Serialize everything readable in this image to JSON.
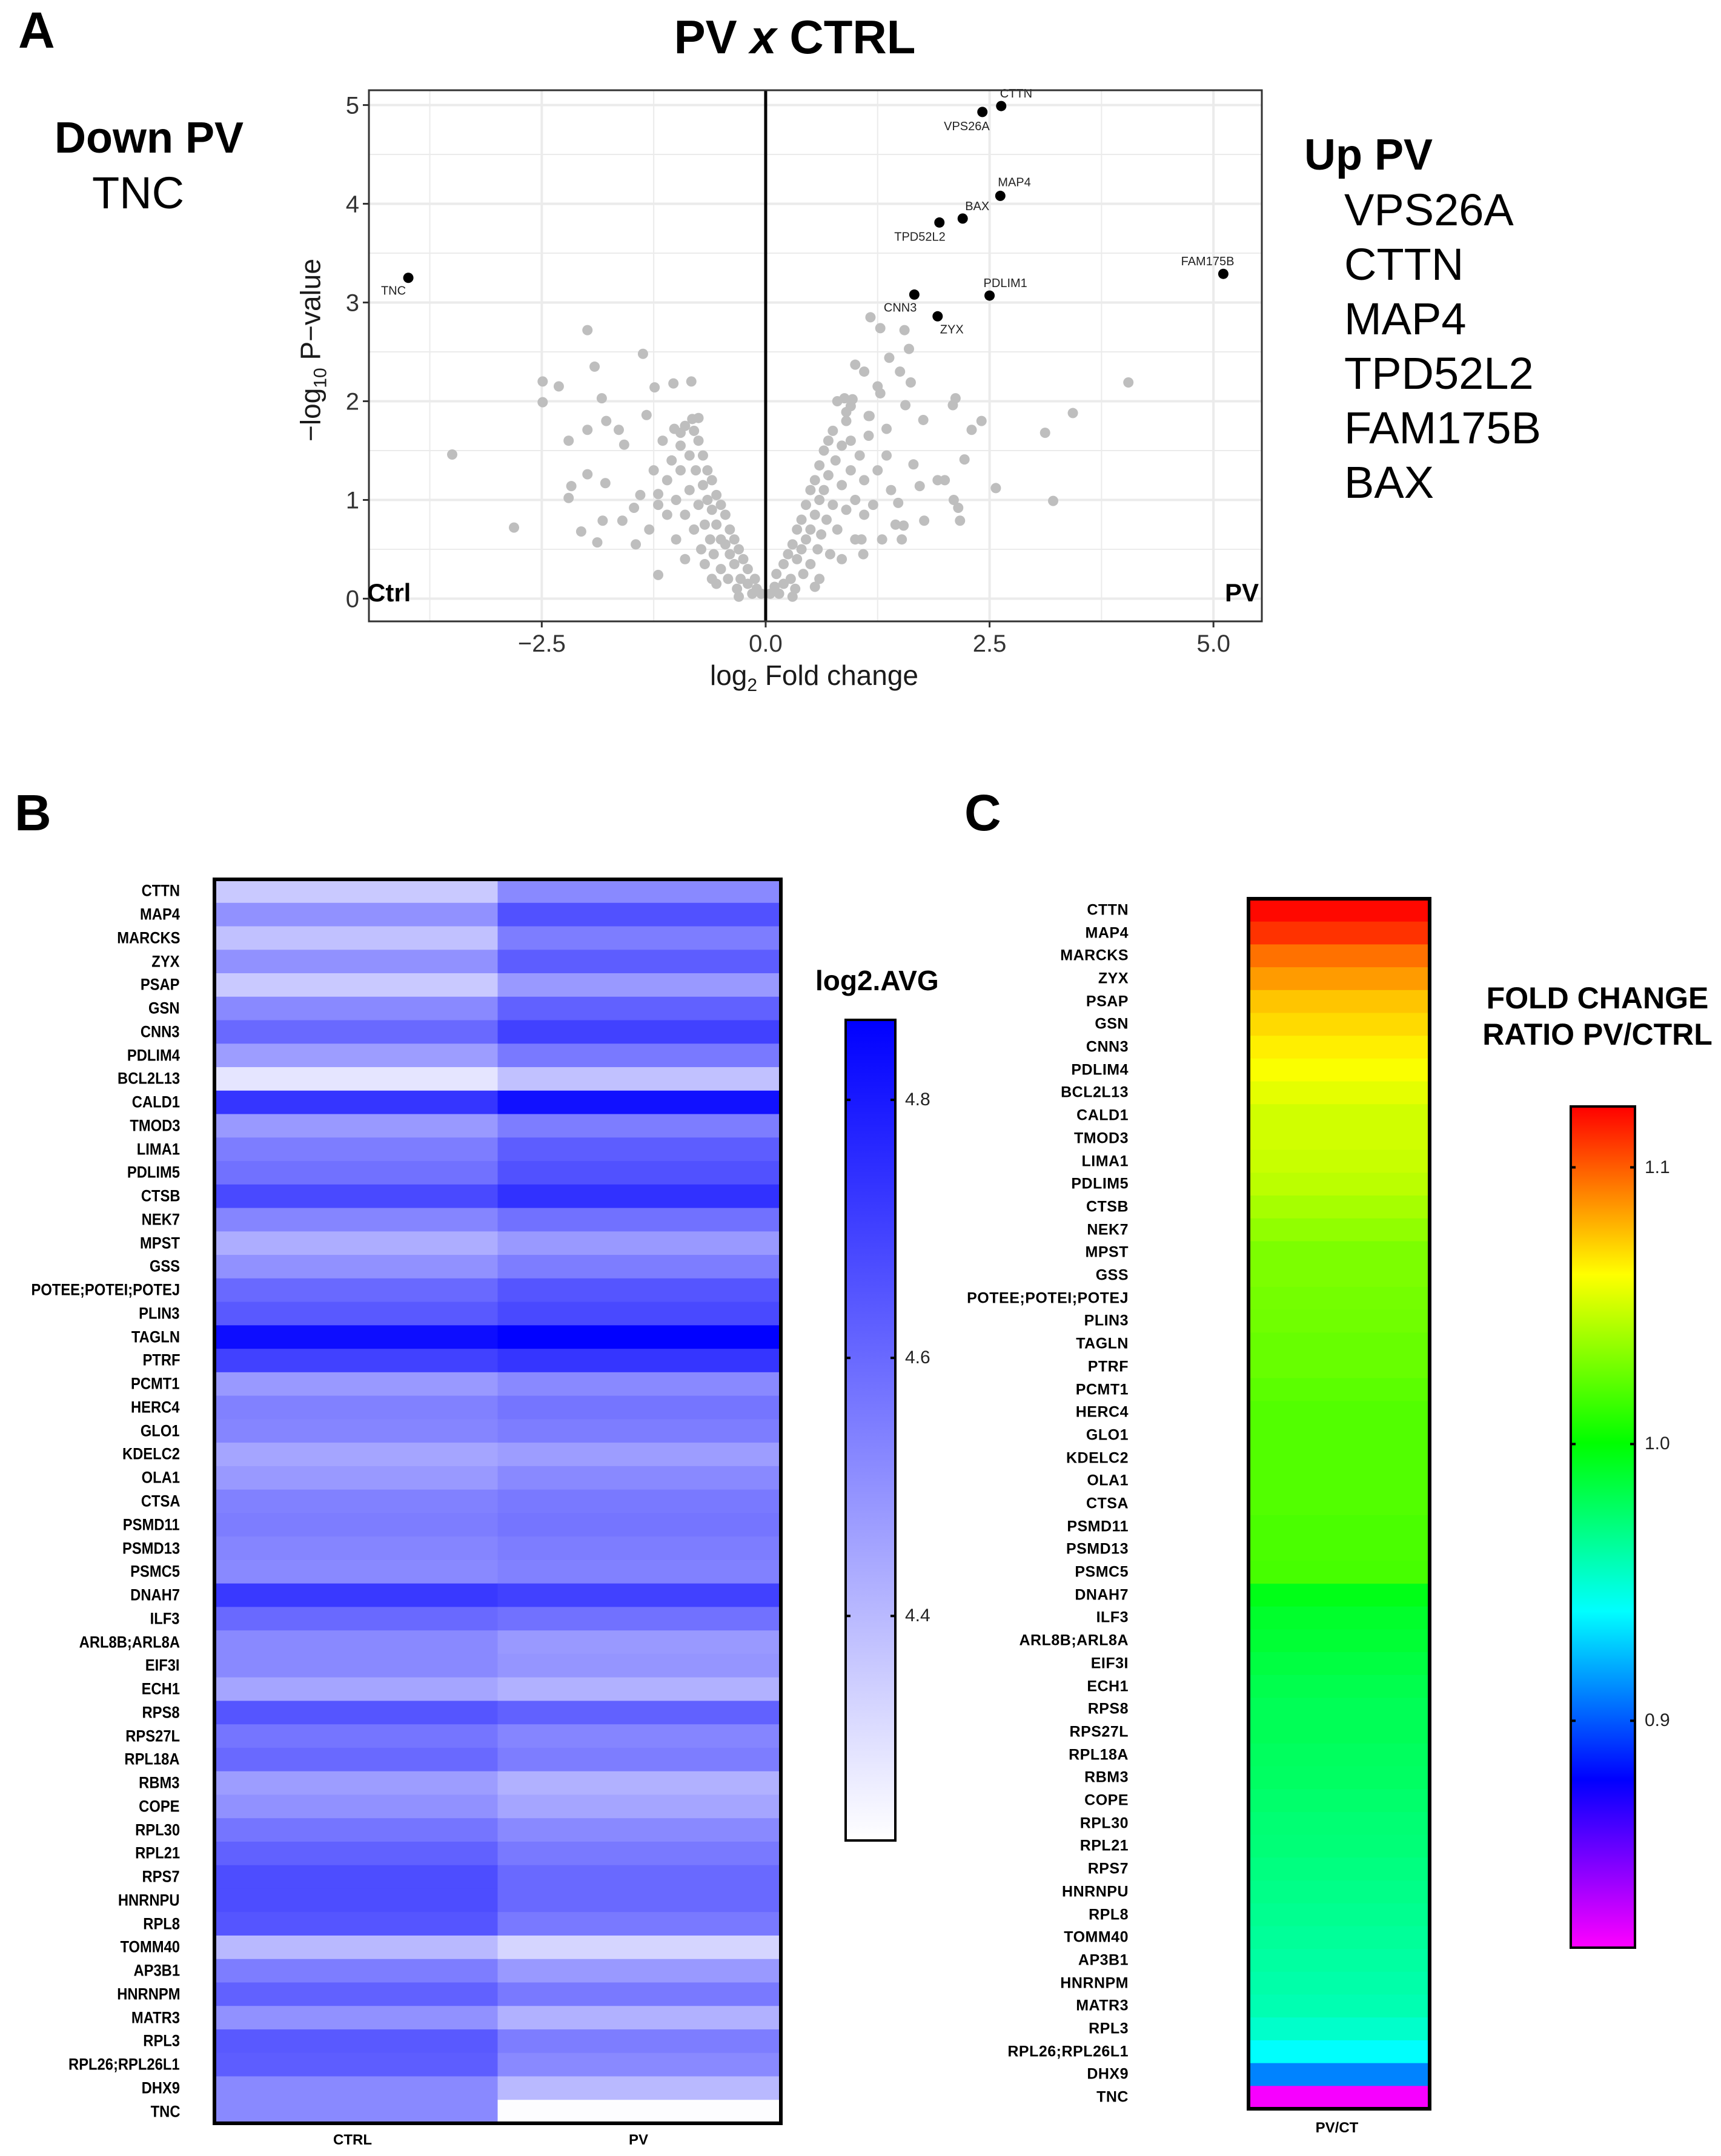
{
  "panels": {
    "a": "A",
    "b": "B",
    "c": "C"
  },
  "volcano": {
    "title_left": "PV",
    "title_x": "x",
    "title_right": "CTRL",
    "down_heading": "Down PV",
    "down_genes": [
      "TNC"
    ],
    "up_heading": "Up PV",
    "up_genes": [
      "VPS26A",
      "CTTN",
      "MAP4",
      "TPD52L2",
      "FAM175B",
      "BAX"
    ],
    "corner_left": "Ctrl",
    "corner_right": "PV"
  },
  "heatmap_b": {
    "legend_title": "log2.AVG",
    "columns": [
      "CTRL",
      "PV"
    ],
    "colorbar_ticks": [
      "4.8",
      "4.6",
      "4.4"
    ]
  },
  "heatmap_c": {
    "legend_title_line1": "FOLD CHANGE",
    "legend_title_line2": "RATIO PV/CTRL",
    "column": "PV/CT",
    "colorbar_ticks": [
      "1.1",
      "1.0",
      "0.9"
    ]
  },
  "chart_data": [
    {
      "type": "scatter",
      "title": "PV x CTRL",
      "xlabel": "log2 Fold change",
      "ylabel": "-log10 P-value",
      "xlim": [
        -4.43,
        5.54
      ],
      "ylim": [
        -0.23,
        5.15
      ],
      "x_ticks": [
        "-2.5",
        "0.0",
        "2.5",
        "5.0"
      ],
      "x_tick_values": [
        -2.5,
        0,
        2.5,
        5
      ],
      "y_ticks": [
        "0",
        "1",
        "2",
        "3",
        "4",
        "5"
      ],
      "y_tick_values": [
        0,
        1,
        2,
        3,
        4,
        5
      ],
      "grid": true,
      "vertical_reference_line": 0,
      "colors": {
        "significant": "#000000",
        "not_significant": "#bebebe",
        "grid": "#ebebeb"
      },
      "significant_points": [
        {
          "label": "CTTN",
          "x": 2.63,
          "y": 4.99
        },
        {
          "label": "VPS26A",
          "x": 2.42,
          "y": 4.93
        },
        {
          "label": "MAP4",
          "x": 2.62,
          "y": 4.08
        },
        {
          "label": "BAX",
          "x": 2.2,
          "y": 3.85
        },
        {
          "label": "TPD52L2",
          "x": 1.94,
          "y": 3.81
        },
        {
          "label": "FAM175B",
          "x": 5.11,
          "y": 3.29
        },
        {
          "label": "PDLIM1",
          "x": 2.5,
          "y": 3.07
        },
        {
          "label": "CNN3",
          "x": 1.66,
          "y": 3.08
        },
        {
          "label": "ZYX",
          "x": 1.92,
          "y": 2.86
        },
        {
          "label": "TNC",
          "x": -3.99,
          "y": 3.25
        }
      ],
      "other_points": [
        [
          -1.99,
          2.72
        ],
        [
          -1.37,
          2.48
        ],
        [
          -1.91,
          2.35
        ],
        [
          -2.49,
          2.2
        ],
        [
          -2.49,
          1.99
        ],
        [
          -2.31,
          2.15
        ],
        [
          -1.83,
          2.03
        ],
        [
          -1.24,
          2.14
        ],
        [
          -1.03,
          2.18
        ],
        [
          -0.83,
          2.2
        ],
        [
          -3.5,
          1.46
        ],
        [
          -2.81,
          0.72
        ],
        [
          -1.33,
          1.86
        ],
        [
          -1.78,
          1.8
        ],
        [
          -1.99,
          1.71
        ],
        [
          -2.2,
          1.6
        ],
        [
          -1.64,
          1.71
        ],
        [
          -1.58,
          1.56
        ],
        [
          -0.75,
          1.83
        ],
        [
          -1.99,
          1.26
        ],
        [
          -1.79,
          1.17
        ],
        [
          -2.17,
          1.14
        ],
        [
          -2.2,
          1.02
        ],
        [
          -1.82,
          0.79
        ],
        [
          -2.06,
          0.68
        ],
        [
          -1.88,
          0.57
        ],
        [
          -1.2,
          0.24
        ],
        [
          -1.6,
          0.79
        ],
        [
          -1.47,
          0.92
        ],
        [
          -1.2,
          1.06
        ],
        [
          1.17,
          2.85
        ],
        [
          1.28,
          2.74
        ],
        [
          1.55,
          2.72
        ],
        [
          1.6,
          2.53
        ],
        [
          1.38,
          2.44
        ],
        [
          1.0,
          2.37
        ],
        [
          1.1,
          2.3
        ],
        [
          1.5,
          2.3
        ],
        [
          1.62,
          2.19
        ],
        [
          1.25,
          2.15
        ],
        [
          1.28,
          2.08
        ],
        [
          4.05,
          2.19
        ],
        [
          2.12,
          2.03
        ],
        [
          2.09,
          1.96
        ],
        [
          1.56,
          1.96
        ],
        [
          0.97,
          2.02
        ],
        [
          0.9,
          1.89
        ],
        [
          3.43,
          1.88
        ],
        [
          1.76,
          1.81
        ],
        [
          2.41,
          1.8
        ],
        [
          2.3,
          1.71
        ],
        [
          3.12,
          1.68
        ],
        [
          1.35,
          1.72
        ],
        [
          1.16,
          1.85
        ],
        [
          2.22,
          1.41
        ],
        [
          1.65,
          1.36
        ],
        [
          2.57,
          1.12
        ],
        [
          3.21,
          0.99
        ],
        [
          2.1,
          1.0
        ],
        [
          2.15,
          0.92
        ],
        [
          1.77,
          0.79
        ],
        [
          2.17,
          0.79
        ],
        [
          1.54,
          0.74
        ],
        [
          1.52,
          0.6
        ],
        [
          1.92,
          1.2
        ],
        [
          2.0,
          1.2
        ],
        [
          1.72,
          1.14
        ],
        [
          1.09,
          0.45
        ],
        [
          1.07,
          0.6
        ],
        [
          1.48,
          0.97
        ],
        [
          -0.05,
          0.05
        ],
        [
          -0.1,
          0.1
        ],
        [
          -0.12,
          0.2
        ],
        [
          -0.15,
          0.05
        ],
        [
          -0.2,
          0.3
        ],
        [
          -0.2,
          0.15
        ],
        [
          -0.25,
          0.4
        ],
        [
          -0.28,
          0.2
        ],
        [
          -0.3,
          0.5
        ],
        [
          -0.32,
          0.1
        ],
        [
          -0.35,
          0.6
        ],
        [
          -0.35,
          0.35
        ],
        [
          -0.4,
          0.7
        ],
        [
          -0.4,
          0.45
        ],
        [
          -0.42,
          0.2
        ],
        [
          -0.45,
          0.85
        ],
        [
          -0.45,
          0.55
        ],
        [
          -0.5,
          0.95
        ],
        [
          -0.5,
          0.6
        ],
        [
          -0.5,
          0.3
        ],
        [
          -0.55,
          1.05
        ],
        [
          -0.55,
          0.75
        ],
        [
          -0.58,
          0.45
        ],
        [
          -0.6,
          1.2
        ],
        [
          -0.6,
          0.9
        ],
        [
          -0.62,
          0.6
        ],
        [
          -0.65,
          1.3
        ],
        [
          -0.65,
          1.0
        ],
        [
          -0.68,
          0.75
        ],
        [
          -0.7,
          1.45
        ],
        [
          -0.7,
          1.15
        ],
        [
          -0.72,
          0.5
        ],
        [
          -0.75,
          1.6
        ],
        [
          -0.75,
          0.95
        ],
        [
          -0.78,
          1.3
        ],
        [
          -0.8,
          1.7
        ],
        [
          -0.8,
          0.7
        ],
        [
          -0.85,
          1.45
        ],
        [
          -0.85,
          1.1
        ],
        [
          -0.9,
          1.75
        ],
        [
          -0.9,
          0.85
        ],
        [
          -0.95,
          1.3
        ],
        [
          -0.95,
          1.55
        ],
        [
          -1.0,
          1.0
        ],
        [
          -1.0,
          0.6
        ],
        [
          -1.05,
          1.4
        ],
        [
          -1.1,
          1.2
        ],
        [
          -1.1,
          0.85
        ],
        [
          -1.15,
          1.6
        ],
        [
          -1.2,
          0.95
        ],
        [
          -1.25,
          1.3
        ],
        [
          -0.6,
          0.2
        ],
        [
          -0.55,
          0.15
        ],
        [
          -0.3,
          0.02
        ],
        [
          -0.68,
          0.35
        ],
        [
          -0.9,
          0.4
        ],
        [
          -1.3,
          0.7
        ],
        [
          -1.4,
          1.05
        ],
        [
          -1.45,
          0.55
        ],
        [
          -0.82,
          1.82
        ],
        [
          -1.02,
          1.72
        ],
        [
          -0.95,
          1.68
        ],
        [
          0.05,
          0.05
        ],
        [
          0.1,
          0.12
        ],
        [
          0.12,
          0.25
        ],
        [
          0.15,
          0.05
        ],
        [
          0.2,
          0.35
        ],
        [
          0.2,
          0.15
        ],
        [
          0.25,
          0.45
        ],
        [
          0.28,
          0.2
        ],
        [
          0.3,
          0.55
        ],
        [
          0.33,
          0.1
        ],
        [
          0.35,
          0.7
        ],
        [
          0.35,
          0.4
        ],
        [
          0.4,
          0.8
        ],
        [
          0.4,
          0.5
        ],
        [
          0.42,
          0.25
        ],
        [
          0.45,
          0.95
        ],
        [
          0.45,
          0.6
        ],
        [
          0.5,
          1.1
        ],
        [
          0.5,
          0.7
        ],
        [
          0.5,
          0.35
        ],
        [
          0.55,
          1.2
        ],
        [
          0.55,
          0.85
        ],
        [
          0.58,
          0.5
        ],
        [
          0.6,
          1.35
        ],
        [
          0.6,
          1.0
        ],
        [
          0.62,
          0.65
        ],
        [
          0.65,
          1.5
        ],
        [
          0.65,
          1.1
        ],
        [
          0.68,
          0.8
        ],
        [
          0.7,
          1.6
        ],
        [
          0.7,
          1.25
        ],
        [
          0.72,
          0.45
        ],
        [
          0.75,
          1.7
        ],
        [
          0.75,
          0.95
        ],
        [
          0.78,
          1.4
        ],
        [
          0.8,
          2.0
        ],
        [
          0.8,
          0.7
        ],
        [
          0.85,
          1.55
        ],
        [
          0.85,
          1.15
        ],
        [
          0.9,
          1.8
        ],
        [
          0.9,
          0.9
        ],
        [
          0.95,
          1.3
        ],
        [
          0.95,
          1.6
        ],
        [
          1.0,
          1.0
        ],
        [
          1.0,
          0.6
        ],
        [
          1.05,
          1.45
        ],
        [
          1.1,
          1.2
        ],
        [
          1.1,
          0.85
        ],
        [
          1.15,
          1.65
        ],
        [
          1.2,
          0.95
        ],
        [
          1.25,
          1.3
        ],
        [
          0.6,
          0.2
        ],
        [
          0.55,
          0.12
        ],
        [
          0.3,
          0.02
        ],
        [
          0.85,
          0.4
        ],
        [
          1.3,
          0.6
        ],
        [
          1.4,
          1.1
        ],
        [
          1.45,
          0.75
        ],
        [
          0.88,
          2.03
        ],
        [
          1.15,
          1.85
        ],
        [
          0.95,
          1.95
        ],
        [
          1.35,
          1.45
        ]
      ]
    },
    {
      "type": "heatmap",
      "legend_title": "log2.AVG",
      "columns": [
        "CTRL",
        "PV"
      ],
      "color_range": [
        4.226,
        4.862
      ],
      "colors": {
        "low": "#ffffff",
        "high": "#0000ff"
      },
      "rows": [
        "CTTN",
        "MAP4",
        "MARCKS",
        "ZYX",
        "PSAP",
        "GSN",
        "CNN3",
        "PDLIM4",
        "BCL2L13",
        "CALD1",
        "TMOD3",
        "LIMA1",
        "PDLIM5",
        "CTSB",
        "NEK7",
        "MPST",
        "GSS",
        "POTEE;POTEI;POTEJ",
        "PLIN3",
        "TAGLN",
        "PTRF",
        "PCMT1",
        "HERC4",
        "GLO1",
        "KDELC2",
        "OLA1",
        "CTSA",
        "PSMD11",
        "PSMD13",
        "PSMC5",
        "DNAH7",
        "ILF3",
        "ARL8B;ARL8A",
        "EIF3I",
        "ECH1",
        "RPS8",
        "RPS27L",
        "RPL18A",
        "RBM3",
        "COPE",
        "RPL30",
        "RPL21",
        "RPS7",
        "HNRNPU",
        "RPL8",
        "TOMM40",
        "AP3B1",
        "HNRNPM",
        "MATR3",
        "RPL3",
        "RPL26;RPL26L1",
        "DHX9",
        "TNC"
      ],
      "values": [
        [
          4.36,
          4.52
        ],
        [
          4.5,
          4.66
        ],
        [
          4.38,
          4.55
        ],
        [
          4.5,
          4.63
        ],
        [
          4.36,
          4.48
        ],
        [
          4.52,
          4.62
        ],
        [
          4.6,
          4.7
        ],
        [
          4.47,
          4.56
        ],
        [
          4.29,
          4.38
        ],
        [
          4.73,
          4.82
        ],
        [
          4.48,
          4.55
        ],
        [
          4.55,
          4.63
        ],
        [
          4.58,
          4.66
        ],
        [
          4.68,
          4.74
        ],
        [
          4.53,
          4.58
        ],
        [
          4.43,
          4.48
        ],
        [
          4.5,
          4.55
        ],
        [
          4.6,
          4.65
        ],
        [
          4.64,
          4.68
        ],
        [
          4.83,
          4.86
        ],
        [
          4.7,
          4.73
        ],
        [
          4.48,
          4.52
        ],
        [
          4.54,
          4.57
        ],
        [
          4.53,
          4.55
        ],
        [
          4.45,
          4.47
        ],
        [
          4.48,
          4.52
        ],
        [
          4.54,
          4.56
        ],
        [
          4.55,
          4.57
        ],
        [
          4.53,
          4.55
        ],
        [
          4.52,
          4.54
        ],
        [
          4.72,
          4.7
        ],
        [
          4.6,
          4.58
        ],
        [
          4.52,
          4.48
        ],
        [
          4.52,
          4.49
        ],
        [
          4.45,
          4.42
        ],
        [
          4.65,
          4.62
        ],
        [
          4.57,
          4.53
        ],
        [
          4.6,
          4.55
        ],
        [
          4.47,
          4.42
        ],
        [
          4.5,
          4.45
        ],
        [
          4.57,
          4.52
        ],
        [
          4.62,
          4.56
        ],
        [
          4.67,
          4.6
        ],
        [
          4.67,
          4.6
        ],
        [
          4.65,
          4.56
        ],
        [
          4.4,
          4.33
        ],
        [
          4.55,
          4.48
        ],
        [
          4.62,
          4.56
        ],
        [
          4.5,
          4.42
        ],
        [
          4.64,
          4.55
        ],
        [
          4.63,
          4.52
        ],
        [
          4.52,
          4.4
        ],
        [
          4.52,
          4.23
        ]
      ],
      "colorbar_ticks": [
        4.8,
        4.6,
        4.4
      ]
    },
    {
      "type": "heatmap",
      "legend_title": "FOLD CHANGE RATIO PV/CTRL",
      "columns": [
        "PV/CT"
      ],
      "color_range": [
        0.818,
        1.122
      ],
      "colors": {
        "high": "#ff0000",
        "mid": "#00ff00",
        "low": "#ff00ff"
      },
      "rows": [
        "CTTN",
        "MAP4",
        "MARCKS",
        "ZYX",
        "PSAP",
        "GSN",
        "CNN3",
        "PDLIM4",
        "BCL2L13",
        "CALD1",
        "TMOD3",
        "LIMA1",
        "PDLIM5",
        "CTSB",
        "NEK7",
        "MPST",
        "GSS",
        "POTEE;POTEI;POTEJ",
        "PLIN3",
        "TAGLN",
        "PTRF",
        "PCMT1",
        "HERC4",
        "GLO1",
        "KDELC2",
        "OLA1",
        "CTSA",
        "PSMD11",
        "PSMD13",
        "PSMC5",
        "DNAH7",
        "ILF3",
        "ARL8B;ARL8A",
        "EIF3I",
        "ECH1",
        "RPS8",
        "RPS27L",
        "RPL18A",
        "RBM3",
        "COPE",
        "RPL30",
        "RPL21",
        "RPS7",
        "HNRNPU",
        "RPL8",
        "TOMM40",
        "AP3B1",
        "HNRNPM",
        "MATR3",
        "RPL3",
        "RPL26;RPL26L1",
        "DHX9",
        "TNC"
      ],
      "values": [
        1.12,
        1.11,
        1.095,
        1.085,
        1.075,
        1.07,
        1.065,
        1.06,
        1.055,
        1.05,
        1.05,
        1.048,
        1.045,
        1.04,
        1.035,
        1.03,
        1.03,
        1.028,
        1.027,
        1.025,
        1.025,
        1.022,
        1.02,
        1.02,
        1.02,
        1.02,
        1.02,
        1.018,
        1.018,
        1.017,
        0.995,
        0.99,
        0.988,
        0.985,
        0.982,
        0.98,
        0.98,
        0.978,
        0.977,
        0.975,
        0.973,
        0.972,
        0.97,
        0.968,
        0.966,
        0.964,
        0.962,
        0.96,
        0.958,
        0.952,
        0.94,
        0.91,
        0.82
      ],
      "colorbar_ticks": [
        1.1,
        1.0,
        0.9
      ]
    }
  ]
}
